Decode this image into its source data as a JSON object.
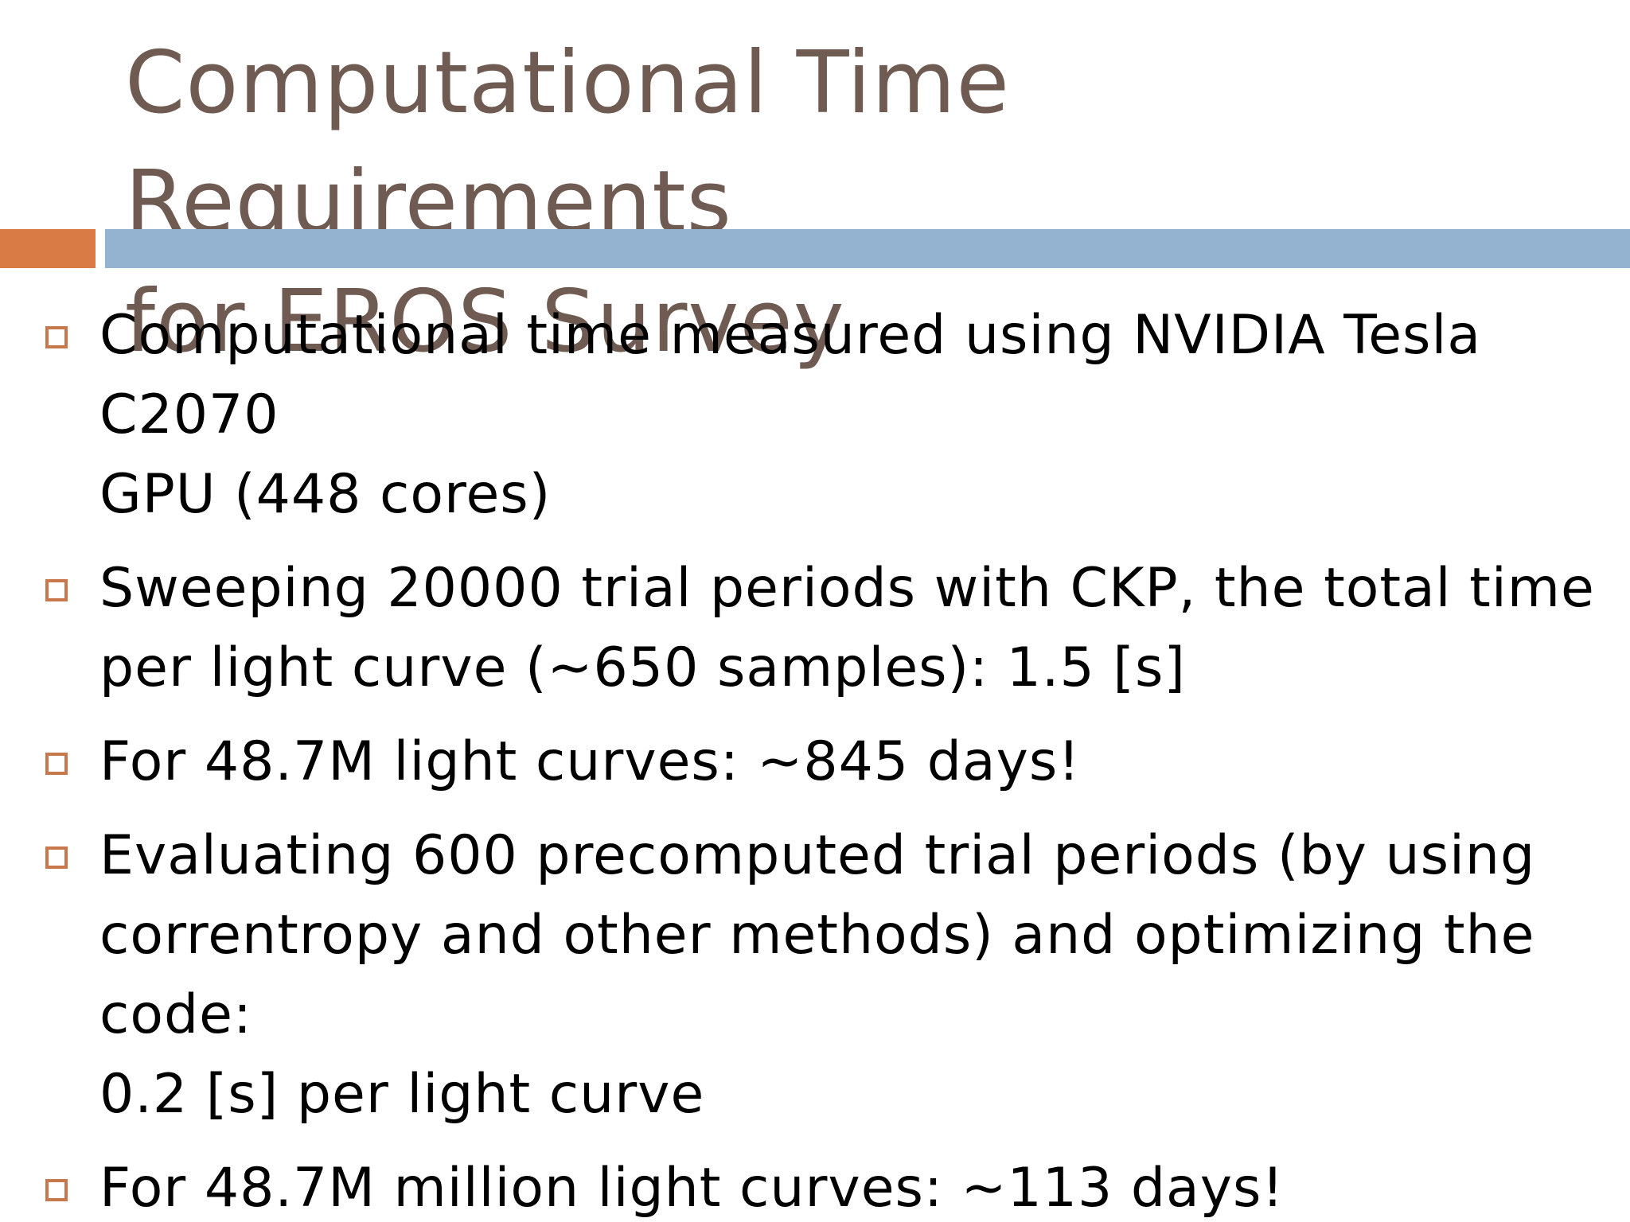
{
  "slide": {
    "title_line1": "Computational Time Requirements",
    "title_line2": "for EROS Survey",
    "bullet_icon": "hollow-square-bullet",
    "colors": {
      "title": "#6f5b52",
      "accent_orange": "#d87b45",
      "accent_blue": "#93b3d1",
      "bullet": "#c8784b",
      "text": "#000000"
    },
    "bullets": [
      {
        "line1": "Computational time measured using NVIDIA Tesla C2070",
        "line2": "GPU (448 cores)",
        "line3": ""
      },
      {
        "line1": "Sweeping 20000 trial periods with CKP, the total time",
        "line2": "per light curve (~650 samples): 1.5 [s]",
        "line3": ""
      },
      {
        "line1": "For 48.7M light curves: ~845 days!",
        "line2": "",
        "line3": ""
      },
      {
        "line1": "Evaluating 600 precomputed trial periods (by using",
        "line2": "correntropy and other methods) and optimizing the code:",
        "line3": "0.2 [s] per light curve"
      },
      {
        "line1": "For 48.7M million light curves: ~113 days!",
        "line2": "",
        "line3": ""
      }
    ]
  }
}
